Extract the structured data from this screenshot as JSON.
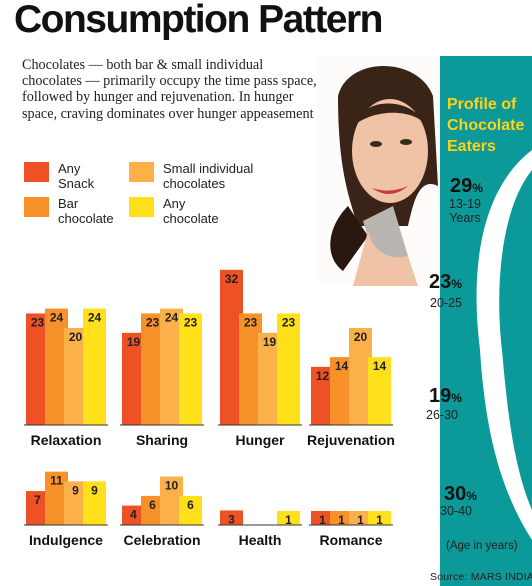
{
  "title": "Consumption Pattern",
  "intro": "Chocolates — both bar & small individual chocolates — primarily occupy the time pass space, followed by hunger and rejuvenation. In hunger space, craving dominates over hunger appeasement",
  "legend": [
    {
      "label": "Any Snack",
      "color": "#ee5224"
    },
    {
      "label": "Small individual chocolates",
      "color": "#fcb04a"
    },
    {
      "label": "Bar chocolate",
      "color": "#f7922a"
    },
    {
      "label": "Any chocolate",
      "color": "#ffe01b"
    }
  ],
  "profile": {
    "title": "Profile of Chocolate Eaters",
    "groups": [
      {
        "pct": "29",
        "age": "13-19 Years"
      },
      {
        "pct": "23",
        "age": "20-25"
      },
      {
        "pct": "19",
        "age": "26-30"
      },
      {
        "pct": "30",
        "age": "30-40"
      }
    ],
    "note": "(Age in years)",
    "color": "#0b9a99",
    "title_color": "#ffd21a"
  },
  "source": "Source: MARS INDIA",
  "chart_data": {
    "type": "bar",
    "series": [
      {
        "name": "Any Snack",
        "color": "#ee5224"
      },
      {
        "name": "Bar chocolate",
        "color": "#f7922a"
      },
      {
        "name": "Small individual chocolates",
        "color": "#fcb04a"
      },
      {
        "name": "Any chocolate",
        "color": "#ffe01b"
      }
    ],
    "categories": [
      {
        "label": "Relaxation",
        "values": [
          23,
          24,
          20,
          24
        ]
      },
      {
        "label": "Sharing",
        "values": [
          19,
          23,
          24,
          23
        ]
      },
      {
        "label": "Hunger",
        "values": [
          32,
          23,
          19,
          23
        ]
      },
      {
        "label": "Rejuvenation",
        "values": [
          12,
          14,
          20,
          14
        ]
      },
      {
        "label": "Indulgence",
        "values": [
          7,
          11,
          9,
          9
        ]
      },
      {
        "label": "Celebration",
        "values": [
          4,
          6,
          10,
          6
        ]
      },
      {
        "label": "Health",
        "values": [
          3,
          null,
          null,
          1
        ]
      },
      {
        "label": "Romance",
        "values": [
          1,
          1,
          1,
          1
        ]
      }
    ]
  }
}
